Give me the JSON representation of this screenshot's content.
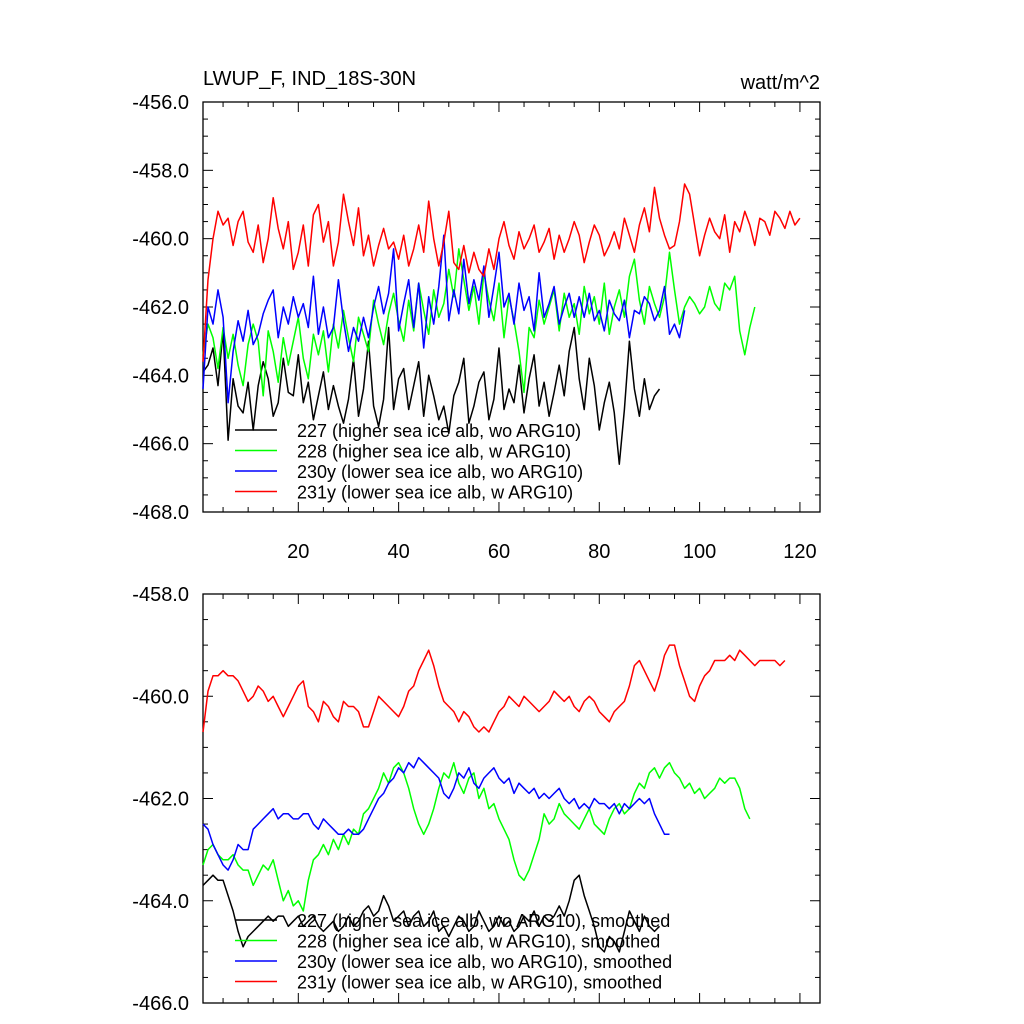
{
  "figure": {
    "title": "LWUP_F, IND_18S-30N",
    "units": "watt/m^2"
  },
  "chart_data": [
    {
      "type": "line",
      "title": "LWUP_F, IND_18S-30N",
      "units": "watt/m^2",
      "xlabel": "",
      "ylabel": "",
      "xlim": [
        1,
        124
      ],
      "ylim": [
        -468,
        -456
      ],
      "yticks": [
        -456.0,
        -458.0,
        -460.0,
        -462.0,
        -464.0,
        -466.0,
        -468.0
      ],
      "ytick_labels": [
        "-456.0",
        "-458.0",
        "-460.0",
        "-462.0",
        "-464.0",
        "-466.0",
        "-468.0"
      ],
      "xticks": [
        20,
        40,
        60,
        80,
        100,
        120
      ],
      "xtick_labels": [
        "20",
        "40",
        "60",
        "80",
        "100",
        "120"
      ],
      "legend": "bottom-left",
      "series": [
        {
          "name": "227 (higher sea ice alb, wo ARG10)",
          "color": "#000000",
          "values": [
            -463.9,
            -463.7,
            -463.2,
            -464.3,
            -462.7,
            -465.9,
            -464.1,
            -464.9,
            -465.1,
            -464.2,
            -465.6,
            -464.3,
            -463.6,
            -464.1,
            -465.2,
            -464.8,
            -463.5,
            -464.5,
            -464.6,
            -463.4,
            -464.8,
            -464.2,
            -465.3,
            -464.6,
            -463.9,
            -465.0,
            -464.3,
            -464.9,
            -465.4,
            -464.7,
            -463.5,
            -465.2,
            -464.4,
            -463.0,
            -464.9,
            -465.5,
            -464.7,
            -462.6,
            -465.0,
            -464.1,
            -463.8,
            -465.0,
            -464.3,
            -463.6,
            -465.2,
            -464.0,
            -464.6,
            -465.3,
            -464.9,
            -465.7,
            -464.6,
            -464.2,
            -463.5,
            -465.4,
            -464.9,
            -464.2,
            -463.9,
            -465.3,
            -464.7,
            -463.2,
            -465.0,
            -464.4,
            -464.8,
            -463.7,
            -465.1,
            -464.1,
            -463.4,
            -464.9,
            -464.2,
            -465.2,
            -464.5,
            -463.7,
            -464.6,
            -463.3,
            -462.6,
            -464.1,
            -465.0,
            -463.5,
            -464.3,
            -465.6,
            -464.8,
            -464.2,
            -465.1,
            -466.6,
            -465.0,
            -463.0,
            -464.4,
            -465.2,
            -464.1,
            -465.0,
            -464.6,
            -464.4
          ]
        },
        {
          "name": "228 (higher sea ice alb, w ARG10)",
          "color": "#00ff00",
          "values": [
            -463.4,
            -462.5,
            -462.9,
            -463.8,
            -462.6,
            -463.5,
            -462.8,
            -463.7,
            -464.3,
            -463.1,
            -462.5,
            -463.0,
            -464.6,
            -462.7,
            -463.3,
            -464.2,
            -462.9,
            -463.7,
            -463.0,
            -462.3,
            -463.5,
            -464.1,
            -462.8,
            -463.4,
            -462.7,
            -463.9,
            -462.5,
            -463.2,
            -462.1,
            -462.9,
            -463.6,
            -462.3,
            -462.8,
            -463.3,
            -461.8,
            -462.5,
            -463.1,
            -462.2,
            -461.6,
            -462.4,
            -463.0,
            -461.8,
            -462.7,
            -461.3,
            -462.1,
            -462.8,
            -461.5,
            -462.3,
            -461.9,
            -460.9,
            -461.7,
            -460.3,
            -461.2,
            -462.1,
            -461.4,
            -462.5,
            -461.0,
            -461.8,
            -462.4,
            -461.3,
            -462.9,
            -461.7,
            -462.4,
            -463.3,
            -464.5,
            -462.6,
            -462.9,
            -461.8,
            -462.5,
            -462.0,
            -461.5,
            -462.7,
            -461.6,
            -462.3,
            -461.9,
            -462.8,
            -461.4,
            -462.2,
            -461.7,
            -462.5,
            -461.3,
            -462.8,
            -462.0,
            -461.5,
            -462.3,
            -461.1,
            -460.6,
            -461.8,
            -462.5,
            -461.4,
            -461.9,
            -462.3,
            -461.7,
            -460.4,
            -461.5,
            -462.5,
            -462.0,
            -461.7,
            -461.9,
            -462.2,
            -462.0,
            -461.4,
            -461.9,
            -462.1,
            -461.3,
            -461.5,
            -461.1,
            -462.7,
            -463.4,
            -462.6,
            -462.0
          ]
        },
        {
          "name": "230y (lower sea ice alb, wo ARG10)",
          "color": "#0000ff",
          "values": [
            -464.4,
            -462.0,
            -462.5,
            -461.5,
            -462.3,
            -464.8,
            -463.3,
            -462.4,
            -463.0,
            -462.1,
            -463.1,
            -462.8,
            -462.2,
            -461.8,
            -461.5,
            -462.9,
            -462.0,
            -462.5,
            -461.7,
            -462.3,
            -461.9,
            -462.6,
            -461.1,
            -462.8,
            -462.0,
            -462.9,
            -462.6,
            -461.2,
            -462.4,
            -463.3,
            -462.6,
            -463.0,
            -462.3,
            -462.9,
            -462.0,
            -461.4,
            -462.2,
            -461.6,
            -460.3,
            -462.7,
            -461.9,
            -461.2,
            -462.6,
            -461.3,
            -463.2,
            -461.7,
            -462.5,
            -461.4,
            -459.9,
            -462.4,
            -461.5,
            -462.2,
            -460.6,
            -461.9,
            -461.2,
            -461.8,
            -460.8,
            -462.3,
            -461.4,
            -460.4,
            -462.0,
            -461.6,
            -462.5,
            -461.3,
            -462.1,
            -461.7,
            -462.7,
            -461.0,
            -462.3,
            -461.9,
            -461.4,
            -462.5,
            -462.0,
            -461.6,
            -462.3,
            -461.7,
            -462.3,
            -461.6,
            -462.4,
            -462.1,
            -462.7,
            -461.8,
            -462.2,
            -462.4,
            -461.8,
            -462.9,
            -462.1,
            -462.2,
            -461.7,
            -461.9,
            -462.4,
            -462.1,
            -461.4,
            -462.8,
            -462.5,
            -462.9,
            -462.1
          ]
        },
        {
          "name": "231y (lower sea ice alb, w ARG10)",
          "color": "#ff0000",
          "values": [
            -463.6,
            -461.2,
            -460.0,
            -459.2,
            -459.6,
            -459.4,
            -460.2,
            -459.5,
            -459.2,
            -460.1,
            -460.4,
            -459.6,
            -460.7,
            -460.0,
            -458.8,
            -459.7,
            -460.3,
            -459.5,
            -460.9,
            -460.4,
            -459.6,
            -460.8,
            -459.3,
            -459.0,
            -460.1,
            -459.5,
            -460.8,
            -460.1,
            -458.7,
            -459.5,
            -460.2,
            -459.1,
            -460.5,
            -459.9,
            -460.8,
            -460.2,
            -459.7,
            -460.3,
            -460.1,
            -460.6,
            -459.9,
            -460.8,
            -460.3,
            -459.6,
            -460.4,
            -458.9,
            -460.0,
            -460.8,
            -460.1,
            -459.2,
            -460.7,
            -460.9,
            -460.2,
            -461.0,
            -460.4,
            -460.9,
            -461.1,
            -460.3,
            -460.9,
            -460.0,
            -459.5,
            -460.2,
            -460.6,
            -459.8,
            -460.3,
            -460.0,
            -459.6,
            -460.4,
            -460.1,
            -459.7,
            -460.6,
            -459.9,
            -460.4,
            -460.0,
            -459.5,
            -459.9,
            -460.7,
            -460.1,
            -459.6,
            -459.9,
            -460.5,
            -460.2,
            -459.8,
            -460.3,
            -459.4,
            -459.9,
            -460.4,
            -459.6,
            -459.1,
            -459.8,
            -458.5,
            -459.4,
            -459.9,
            -460.3,
            -460.2,
            -459.5,
            -458.4,
            -458.7,
            -459.6,
            -460.5,
            -459.9,
            -459.4,
            -459.8,
            -460.0,
            -459.3,
            -460.4,
            -459.5,
            -459.8,
            -459.2,
            -459.6,
            -460.2,
            -459.4,
            -459.5,
            -459.9,
            -459.2,
            -459.4,
            -459.7,
            -459.2,
            -459.6,
            -459.4
          ]
        }
      ]
    },
    {
      "type": "line",
      "title": "",
      "xlabel": "",
      "ylabel": "",
      "xlim": [
        1,
        124
      ],
      "ylim": [
        -466,
        -458
      ],
      "yticks": [
        -458.0,
        -460.0,
        -462.0,
        -464.0,
        -466.0
      ],
      "ytick_labels": [
        "-458.0",
        "-460.0",
        "-462.0",
        "-464.0",
        "-466.0"
      ],
      "xticks": [
        20,
        40,
        60,
        80,
        100,
        120
      ],
      "xtick_labels": [],
      "legend": "bottom-left",
      "series": [
        {
          "name": "227 (higher sea ice alb, wo ARG10), smoothed",
          "color": "#000000",
          "values": [
            -463.7,
            -463.6,
            -463.5,
            -463.6,
            -463.6,
            -463.9,
            -464.2,
            -464.6,
            -464.9,
            -464.7,
            -464.6,
            -464.5,
            -464.4,
            -464.3,
            -464.4,
            -464.3,
            -464.3,
            -464.5,
            -464.4,
            -464.3,
            -464.5,
            -464.4,
            -464.3,
            -464.5,
            -464.6,
            -464.5,
            -464.4,
            -464.6,
            -464.5,
            -464.3,
            -464.5,
            -464.4,
            -464.2,
            -464.1,
            -464.3,
            -464.2,
            -463.9,
            -464.1,
            -464.4,
            -464.3,
            -464.2,
            -464.5,
            -464.3,
            -464.2,
            -464.5,
            -464.4,
            -464.2,
            -464.6,
            -464.5,
            -464.7,
            -464.5,
            -464.3,
            -464.4,
            -464.6,
            -464.5,
            -464.2,
            -464.4,
            -464.6,
            -464.5,
            -464.3,
            -464.5,
            -464.4,
            -464.6,
            -464.5,
            -464.3,
            -464.4,
            -464.2,
            -464.5,
            -464.3,
            -464.4,
            -464.3,
            -464.1,
            -464.3,
            -464.0,
            -463.6,
            -463.5,
            -463.9,
            -464.2,
            -464.5,
            -464.9,
            -465.0,
            -464.7,
            -464.8,
            -465.0,
            -464.6,
            -464.2,
            -464.4,
            -464.6,
            -464.3,
            -464.5,
            -464.6,
            -464.5
          ]
        },
        {
          "name": "228 (higher sea ice alb, w ARG10), smoothed",
          "color": "#00ff00",
          "values": [
            -463.3,
            -463.0,
            -462.9,
            -463.1,
            -463.2,
            -463.2,
            -463.1,
            -463.3,
            -463.4,
            -463.4,
            -463.7,
            -463.5,
            -463.3,
            -463.4,
            -463.2,
            -463.6,
            -464.0,
            -463.8,
            -464.1,
            -464.0,
            -464.2,
            -463.6,
            -463.2,
            -463.1,
            -462.9,
            -463.1,
            -462.8,
            -463.0,
            -462.7,
            -462.9,
            -462.6,
            -462.7,
            -462.3,
            -462.2,
            -462.0,
            -461.8,
            -461.5,
            -461.7,
            -461.4,
            -461.3,
            -461.5,
            -461.8,
            -462.2,
            -462.5,
            -462.7,
            -462.5,
            -462.2,
            -461.8,
            -461.5,
            -461.6,
            -461.3,
            -461.7,
            -461.9,
            -461.6,
            -461.5,
            -462.0,
            -461.8,
            -462.2,
            -462.1,
            -462.4,
            -462.6,
            -462.8,
            -463.2,
            -463.5,
            -463.6,
            -463.4,
            -463.1,
            -462.8,
            -462.3,
            -462.5,
            -462.4,
            -462.1,
            -462.3,
            -462.4,
            -462.5,
            -462.6,
            -462.4,
            -462.2,
            -462.5,
            -462.6,
            -462.7,
            -462.4,
            -462.2,
            -462.1,
            -462.3,
            -462.2,
            -461.9,
            -461.7,
            -461.8,
            -461.5,
            -461.4,
            -461.6,
            -461.4,
            -461.3,
            -461.5,
            -461.6,
            -461.8,
            -461.7,
            -461.9,
            -461.8,
            -462.0,
            -461.9,
            -461.8,
            -461.6,
            -461.7,
            -461.6,
            -461.6,
            -461.8,
            -462.2,
            -462.4
          ]
        },
        {
          "name": "230y (lower sea ice alb, wo ARG10), smoothed",
          "color": "#0000ff",
          "values": [
            -462.5,
            -462.6,
            -462.9,
            -463.1,
            -463.3,
            -463.4,
            -463.2,
            -462.9,
            -463.0,
            -463.0,
            -462.6,
            -462.5,
            -462.4,
            -462.3,
            -462.2,
            -462.4,
            -462.3,
            -462.3,
            -462.4,
            -462.4,
            -462.3,
            -462.3,
            -462.5,
            -462.6,
            -462.4,
            -462.5,
            -462.6,
            -462.7,
            -462.7,
            -462.6,
            -462.7,
            -462.7,
            -462.6,
            -462.4,
            -462.2,
            -462.0,
            -461.9,
            -461.7,
            -461.6,
            -461.4,
            -461.5,
            -461.3,
            -461.4,
            -461.2,
            -461.3,
            -461.4,
            -461.5,
            -461.6,
            -461.9,
            -462.0,
            -461.8,
            -461.5,
            -461.6,
            -461.4,
            -461.7,
            -461.8,
            -461.6,
            -461.5,
            -461.4,
            -461.6,
            -461.7,
            -461.6,
            -461.9,
            -461.7,
            -461.8,
            -461.9,
            -461.8,
            -462.0,
            -461.9,
            -462.0,
            -461.9,
            -461.8,
            -462.0,
            -462.1,
            -462.0,
            -462.2,
            -462.1,
            -462.2,
            -462.0,
            -462.1,
            -462.1,
            -462.2,
            -462.1,
            -462.3,
            -462.1,
            -462.2,
            -462.1,
            -462.0,
            -462.1,
            -462.0,
            -462.3,
            -462.5,
            -462.7,
            -462.7
          ]
        },
        {
          "name": "231y (lower sea ice alb, w ARG10), smoothed",
          "color": "#ff0000",
          "values": [
            -460.7,
            -459.9,
            -459.6,
            -459.6,
            -459.5,
            -459.6,
            -459.6,
            -459.7,
            -459.9,
            -460.1,
            -460.0,
            -459.8,
            -459.9,
            -460.1,
            -460.0,
            -460.2,
            -460.4,
            -460.2,
            -460.0,
            -459.8,
            -459.7,
            -460.2,
            -460.3,
            -460.5,
            -460.1,
            -460.2,
            -460.4,
            -460.5,
            -460.1,
            -460.2,
            -460.2,
            -460.3,
            -460.6,
            -460.6,
            -460.3,
            -460.0,
            -460.1,
            -460.2,
            -460.3,
            -460.4,
            -460.2,
            -459.9,
            -459.8,
            -459.5,
            -459.3,
            -459.1,
            -459.4,
            -459.8,
            -460.1,
            -460.2,
            -460.3,
            -460.5,
            -460.3,
            -460.4,
            -460.6,
            -460.7,
            -460.6,
            -460.7,
            -460.5,
            -460.3,
            -460.2,
            -460.0,
            -460.1,
            -460.2,
            -460.0,
            -460.1,
            -460.2,
            -460.3,
            -460.2,
            -460.1,
            -459.9,
            -460.0,
            -460.1,
            -460.0,
            -460.2,
            -460.3,
            -460.1,
            -460.0,
            -460.1,
            -460.3,
            -460.4,
            -460.5,
            -460.3,
            -460.2,
            -460.1,
            -459.8,
            -459.4,
            -459.3,
            -459.5,
            -459.7,
            -459.9,
            -459.6,
            -459.2,
            -459.0,
            -459.0,
            -459.4,
            -459.7,
            -460.0,
            -460.1,
            -459.8,
            -459.6,
            -459.5,
            -459.3,
            -459.3,
            -459.3,
            -459.2,
            -459.3,
            -459.1,
            -459.2,
            -459.3,
            -459.4,
            -459.3,
            -459.3,
            -459.3,
            -459.3,
            -459.4,
            -459.3
          ]
        }
      ]
    }
  ]
}
